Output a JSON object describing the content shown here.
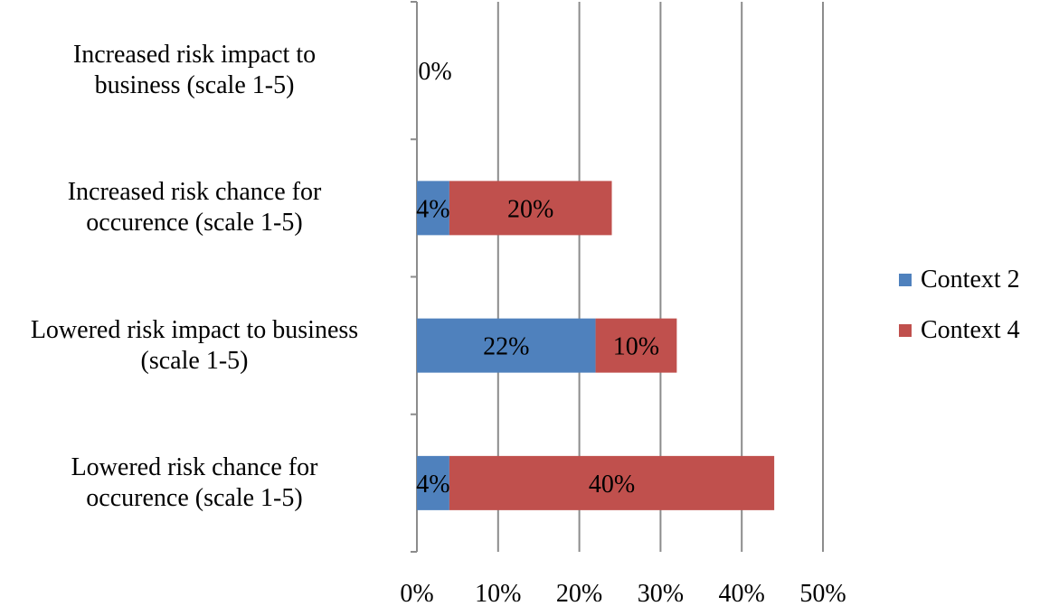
{
  "chart_data": {
    "type": "bar",
    "orientation": "horizontal",
    "stacked": true,
    "categories": [
      "Increased risk impact to business (scale 1-5)",
      "Increased risk chance for occurence (scale 1-5)",
      "Lowered risk impact to business (scale 1-5)",
      "Lowered risk chance for occurence (scale 1-5)"
    ],
    "category_lines": [
      [
        "Increased risk impact to",
        "business (scale 1-5)"
      ],
      [
        "Increased risk chance for",
        "occurence (scale 1-5)"
      ],
      [
        "Lowered risk impact to business",
        "(scale 1-5)"
      ],
      [
        "Lowered risk chance for",
        "occurence (scale 1-5)"
      ]
    ],
    "series": [
      {
        "name": "Context 2",
        "color": "#4F81BD",
        "values": [
          0,
          4,
          22,
          4
        ],
        "labels": [
          "0%",
          "4%",
          "22%",
          "4%"
        ]
      },
      {
        "name": "Context 4",
        "color": "#C0504D",
        "values": [
          0,
          20,
          10,
          40
        ],
        "labels": [
          "",
          "20%",
          "10%",
          "40%"
        ]
      }
    ],
    "xlim": [
      0,
      50
    ],
    "x_ticks": [
      "0%",
      "10%",
      "20%",
      "30%",
      "40%",
      "50%"
    ],
    "grid": true,
    "legend": "right",
    "xlabel": "",
    "ylabel": ""
  }
}
